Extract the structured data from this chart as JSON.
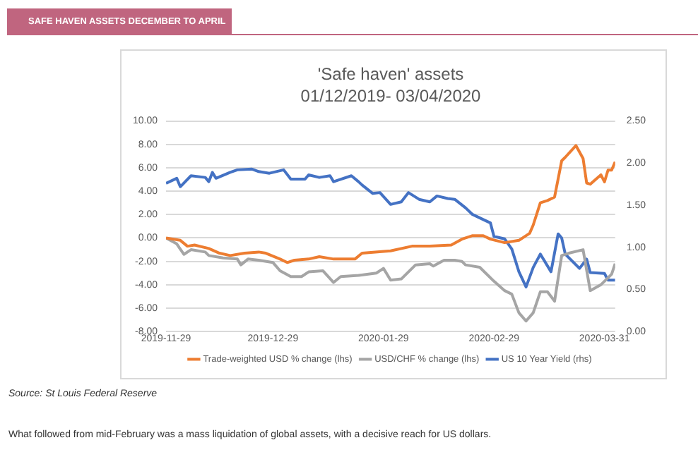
{
  "chart_data": {
    "type": "line",
    "title": "'Safe haven' assets",
    "subtitle": "01/12/2019- 03/04/2020",
    "annotations": [
      "SAFE HAVEN ASSETS DECEMBER TO APRIL",
      "Source: St Louis Federal Reserve",
      "What followed from mid-February was a mass liquidation of global assets, with a decisive reach for US dollars."
    ],
    "xlim": [
      "2019-11-29",
      "2020-04-03"
    ],
    "xticks": [
      "2019-11-29",
      "2019-12-29",
      "2020-01-29",
      "2020-02-29",
      "2020-03-31"
    ],
    "ylim": [
      -8,
      10
    ],
    "yticks": [
      {
        "value": -8,
        "label": "-8.00"
      },
      {
        "value": -6,
        "label": "-6.00"
      },
      {
        "value": -4,
        "label": "-4.00"
      },
      {
        "value": -2,
        "label": "-2.00"
      },
      {
        "value": 0,
        "label": "0.00"
      },
      {
        "value": 2,
        "label": "2.00"
      },
      {
        "value": 4,
        "label": "4.00"
      },
      {
        "value": 6,
        "label": "6.00"
      },
      {
        "value": 8,
        "label": "8.00"
      },
      {
        "value": 10,
        "label": "10.00"
      }
    ],
    "y2lim": [
      0,
      2.5
    ],
    "y2ticks": [
      {
        "value": 0,
        "label": "0.00"
      },
      {
        "value": 0.5,
        "label": "0.50"
      },
      {
        "value": 1,
        "label": "1.00"
      },
      {
        "value": 1.5,
        "label": "1.50"
      },
      {
        "value": 2,
        "label": "2.00"
      },
      {
        "value": 2.5,
        "label": "2.50"
      }
    ],
    "grid": "y",
    "legend": "bottom",
    "marker": "none",
    "line_style": "solid",
    "series": [
      {
        "name": "Trade-weighted USD % change (lhs)",
        "color": "#ed7d31",
        "x": [
          "2019-11-29",
          "2019-12-03",
          "2019-12-05",
          "2019-12-07",
          "2019-12-11",
          "2019-12-14",
          "2019-12-17",
          "2019-12-21",
          "2019-12-25",
          "2019-12-27",
          "2019-12-31",
          "2020-01-02",
          "2020-01-04",
          "2020-01-08",
          "2020-01-11",
          "2020-01-15",
          "2020-01-21",
          "2020-01-23",
          "2020-01-31",
          "2020-02-06",
          "2020-02-11",
          "2020-02-17",
          "2020-02-20",
          "2020-02-23",
          "2020-02-26",
          "2020-02-28",
          "2020-03-03",
          "2020-03-07",
          "2020-03-10",
          "2020-03-11",
          "2020-03-13",
          "2020-03-15",
          "2020-03-17",
          "2020-03-19",
          "2020-03-20",
          "2020-03-23",
          "2020-03-25",
          "2020-03-26",
          "2020-03-27",
          "2020-03-30",
          "2020-03-31",
          "2020-04-01",
          "2020-04-02",
          "2020-04-03"
        ],
        "values": [
          0.0,
          -0.2,
          -0.7,
          -0.6,
          -0.9,
          -1.3,
          -1.5,
          -1.3,
          -1.2,
          -1.3,
          -1.8,
          -2.1,
          -1.9,
          -1.8,
          -1.6,
          -1.8,
          -1.8,
          -1.3,
          -1.1,
          -0.7,
          -0.7,
          -0.6,
          -0.1,
          0.2,
          0.2,
          -0.1,
          -0.4,
          -0.2,
          0.4,
          1.1,
          3.0,
          3.2,
          3.5,
          6.6,
          6.9,
          7.9,
          6.8,
          4.7,
          4.6,
          5.4,
          4.8,
          5.8,
          5.8,
          6.5
        ]
      },
      {
        "name": "USD/CHF % change (lhs)",
        "color": "#a5a5a5",
        "x": [
          "2019-11-29",
          "2019-12-02",
          "2019-12-04",
          "2019-12-06",
          "2019-12-10",
          "2019-12-11",
          "2019-12-15",
          "2019-12-19",
          "2019-12-20",
          "2019-12-22",
          "2019-12-25",
          "2019-12-29",
          "2019-12-31",
          "2020-01-03",
          "2020-01-06",
          "2020-01-08",
          "2020-01-12",
          "2020-01-15",
          "2020-01-17",
          "2020-01-22",
          "2020-01-27",
          "2020-01-29",
          "2020-01-31",
          "2020-02-03",
          "2020-02-07",
          "2020-02-11",
          "2020-02-12",
          "2020-02-15",
          "2020-02-18",
          "2020-02-20",
          "2020-02-21",
          "2020-02-25",
          "2020-02-29",
          "2020-03-03",
          "2020-03-05",
          "2020-03-07",
          "2020-03-09",
          "2020-03-11",
          "2020-03-13",
          "2020-03-15",
          "2020-03-17",
          "2020-03-19",
          "2020-03-21",
          "2020-03-25",
          "2020-03-27",
          "2020-03-30",
          "2020-04-02",
          "2020-04-03"
        ],
        "values": [
          0.0,
          -0.5,
          -1.4,
          -1.0,
          -1.2,
          -1.5,
          -1.7,
          -1.8,
          -2.3,
          -1.8,
          -1.9,
          -2.1,
          -2.8,
          -3.3,
          -3.3,
          -2.9,
          -2.8,
          -3.8,
          -3.3,
          -3.2,
          -3.0,
          -2.6,
          -3.6,
          -3.5,
          -2.3,
          -2.2,
          -2.4,
          -1.9,
          -1.9,
          -2.0,
          -2.3,
          -2.5,
          -3.7,
          -4.5,
          -4.8,
          -6.4,
          -7.1,
          -6.4,
          -4.6,
          -4.6,
          -5.4,
          -1.5,
          -1.3,
          -1.0,
          -4.5,
          -4.0,
          -3.1,
          -2.2
        ]
      },
      {
        "name": "US 10 Year Yield (rhs)",
        "color": "#4472c4",
        "axis": "y2",
        "x": [
          "2019-11-29",
          "2019-12-02",
          "2019-12-03",
          "2019-12-06",
          "2019-12-10",
          "2019-12-11",
          "2019-12-12",
          "2019-12-13",
          "2019-12-17",
          "2019-12-19",
          "2019-12-23",
          "2019-12-25",
          "2019-12-28",
          "2020-01-01",
          "2020-01-03",
          "2020-01-07",
          "2020-01-08",
          "2020-01-11",
          "2020-01-14",
          "2020-01-15",
          "2020-01-20",
          "2020-01-22",
          "2020-01-23",
          "2020-01-26",
          "2020-01-28",
          "2020-01-31",
          "2020-02-03",
          "2020-02-05",
          "2020-02-08",
          "2020-02-11",
          "2020-02-13",
          "2020-02-16",
          "2020-02-18",
          "2020-02-21",
          "2020-02-23",
          "2020-02-26",
          "2020-02-28",
          "2020-02-29",
          "2020-03-03",
          "2020-03-05",
          "2020-03-07",
          "2020-03-09",
          "2020-03-11",
          "2020-03-13",
          "2020-03-16",
          "2020-03-18",
          "2020-03-19",
          "2020-03-20",
          "2020-03-24",
          "2020-03-26",
          "2020-03-27",
          "2020-03-31",
          "2020-04-01",
          "2020-04-03"
        ],
        "values": [
          1.76,
          1.82,
          1.72,
          1.85,
          1.83,
          1.78,
          1.89,
          1.82,
          1.89,
          1.92,
          1.93,
          1.9,
          1.88,
          1.92,
          1.81,
          1.81,
          1.86,
          1.83,
          1.85,
          1.78,
          1.85,
          1.78,
          1.74,
          1.64,
          1.65,
          1.51,
          1.54,
          1.65,
          1.57,
          1.54,
          1.61,
          1.58,
          1.57,
          1.47,
          1.39,
          1.33,
          1.29,
          1.13,
          1.1,
          0.98,
          0.71,
          0.53,
          0.76,
          0.92,
          0.71,
          1.16,
          1.11,
          0.92,
          0.75,
          0.86,
          0.7,
          0.69,
          0.61,
          0.61
        ]
      }
    ]
  }
}
